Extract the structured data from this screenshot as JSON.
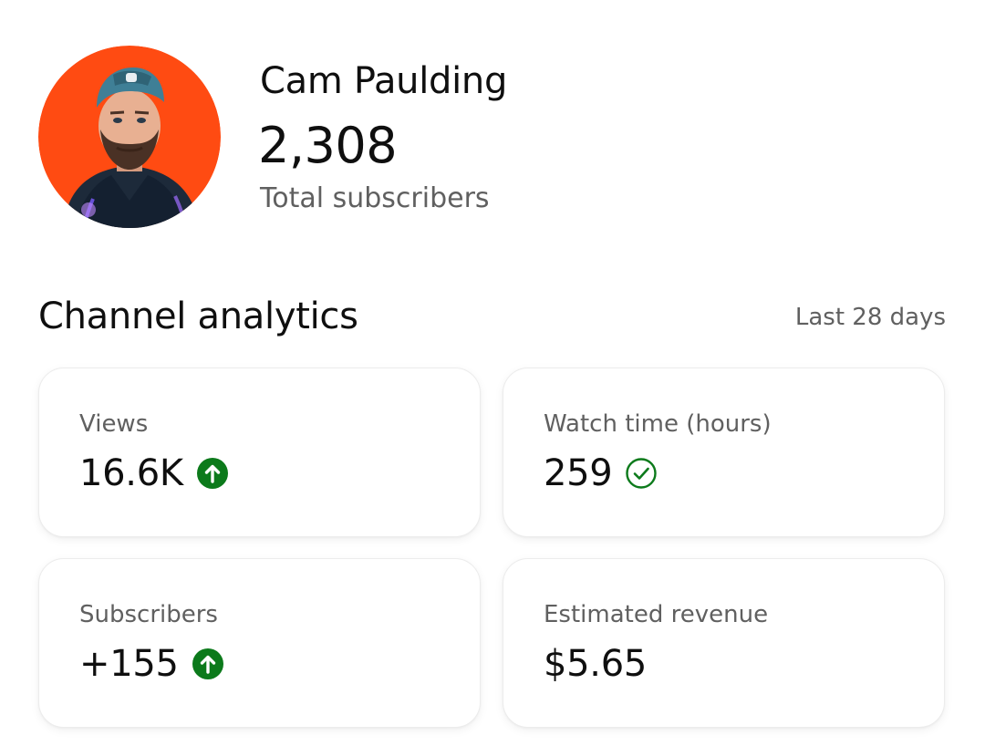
{
  "profile": {
    "channel_name": "Cam Paulding",
    "subscriber_count": "2,308",
    "subscriber_label": "Total subscribers",
    "avatar_bg": "#ff4b12"
  },
  "analytics": {
    "title": "Channel analytics",
    "period": "Last 28 days",
    "colors": {
      "up": "#0c7a1b",
      "check": "#0c7a1b"
    },
    "cards": [
      {
        "label": "Views",
        "value": "16.6K",
        "indicator": "arrow-up-circle-icon"
      },
      {
        "label": "Watch time (hours)",
        "value": "259",
        "indicator": "check-circle-icon"
      },
      {
        "label": "Subscribers",
        "value": "+155",
        "indicator": "arrow-up-circle-icon"
      },
      {
        "label": "Estimated revenue",
        "value": "$5.65",
        "indicator": ""
      }
    ]
  }
}
